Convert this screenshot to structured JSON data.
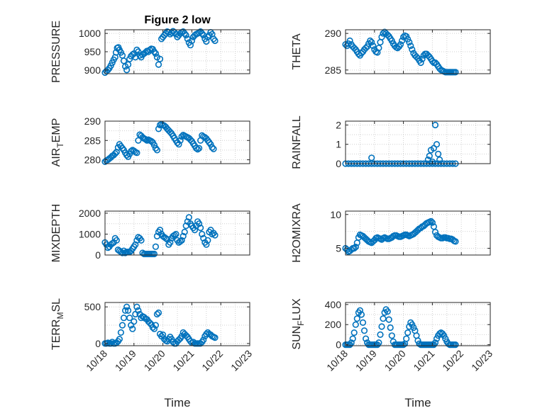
{
  "colors": {
    "marker": "#0072BD",
    "axis": "#262626",
    "grid": "#d0d0d0"
  },
  "chart_data": [
    {
      "type": "scatter",
      "title": "Figure 2 low",
      "ylabel": "PRESSURE",
      "ylabel_sub": "",
      "xlim": [
        0,
        5
      ],
      "ylim": [
        890,
        1010
      ],
      "yticks": [
        900,
        950,
        1000
      ],
      "show_xticks": false,
      "x": [
        0,
        0.05,
        0.1,
        0.15,
        0.2,
        0.25,
        0.3,
        0.35,
        0.38,
        0.42,
        0.46,
        0.5,
        0.55,
        0.6,
        0.65,
        0.7,
        0.75,
        0.8,
        0.85,
        0.9,
        0.95,
        1.0,
        1.05,
        1.1,
        1.15,
        1.2,
        1.25,
        1.3,
        1.35,
        1.4,
        1.45,
        1.5,
        1.55,
        1.6,
        1.65,
        1.7,
        1.75,
        1.8,
        1.85,
        1.9,
        1.95,
        2.0,
        2.05,
        2.1,
        2.15,
        2.2,
        2.25,
        2.3,
        2.35,
        2.4,
        2.45,
        2.5,
        2.55,
        2.6,
        2.65,
        2.7,
        2.75,
        2.8,
        2.85,
        2.9,
        2.95,
        3.0,
        3.05,
        3.1,
        3.15,
        3.2,
        3.25,
        3.3,
        3.35,
        3.4,
        3.45,
        3.5,
        3.55,
        3.6,
        3.65,
        3.7,
        3.75,
        3.8
      ],
      "y": [
        893,
        897,
        900,
        905,
        912,
        920,
        928,
        935,
        948,
        960,
        962,
        955,
        948,
        940,
        925,
        910,
        900,
        915,
        930,
        938,
        942,
        945,
        935,
        955,
        950,
        940,
        935,
        942,
        945,
        948,
        952,
        950,
        955,
        958,
        957,
        950,
        945,
        935,
        915,
        930,
        985,
        990,
        995,
        1000,
        1005,
        1003,
        998,
        1002,
        1006,
        1003,
        998,
        990,
        995,
        1000,
        1003,
        1005,
        1000,
        995,
        985,
        975,
        968,
        980,
        990,
        995,
        998,
        1000,
        1002,
        1005,
        1000,
        995,
        985,
        978,
        990,
        995,
        1003,
        998,
        985,
        980
      ]
    },
    {
      "type": "scatter",
      "title": "",
      "ylabel": "THETA",
      "ylabel_sub": "",
      "xlim": [
        0,
        5
      ],
      "ylim": [
        284.5,
        290.5
      ],
      "yticks": [
        285,
        290
      ],
      "show_xticks": false,
      "x": [
        0,
        0.05,
        0.1,
        0.15,
        0.2,
        0.25,
        0.3,
        0.35,
        0.4,
        0.45,
        0.5,
        0.55,
        0.6,
        0.65,
        0.7,
        0.75,
        0.8,
        0.85,
        0.9,
        0.95,
        1.0,
        1.05,
        1.1,
        1.15,
        1.2,
        1.25,
        1.3,
        1.35,
        1.4,
        1.45,
        1.5,
        1.55,
        1.6,
        1.65,
        1.7,
        1.75,
        1.8,
        1.85,
        1.9,
        1.95,
        2.0,
        2.05,
        2.1,
        2.15,
        2.2,
        2.25,
        2.3,
        2.35,
        2.4,
        2.45,
        2.5,
        2.55,
        2.6,
        2.65,
        2.7,
        2.75,
        2.8,
        2.85,
        2.9,
        2.95,
        3.0,
        3.05,
        3.1,
        3.15,
        3.2,
        3.25,
        3.3,
        3.35,
        3.4,
        3.45,
        3.5,
        3.55,
        3.6,
        3.65,
        3.7,
        3.75,
        3.8
      ],
      "y": [
        288.5,
        288.3,
        288.6,
        289,
        288.5,
        288.2,
        288,
        287.8,
        287.5,
        287.2,
        287.0,
        287.3,
        287.5,
        287.8,
        288,
        288.2,
        288.6,
        289,
        288.8,
        288.3,
        287.8,
        287.5,
        287.4,
        288,
        288.8,
        289.5,
        290,
        290.2,
        290,
        289.8,
        289.6,
        289.3,
        289,
        288.6,
        288.3,
        288.1,
        288,
        288.2,
        288.5,
        289,
        289.5,
        289.7,
        289.6,
        289.2,
        288.8,
        288.3,
        287.8,
        287.3,
        287,
        286.8,
        286.6,
        286.3,
        286,
        286.5,
        287,
        287.2,
        287.2,
        287,
        286.8,
        286.5,
        286.2,
        286,
        286,
        285.8,
        285.5,
        285.2,
        285,
        284.9,
        284.8,
        284.7,
        284.7,
        284.7,
        284.7,
        284.7,
        284.7,
        284.7,
        284.7
      ]
    },
    {
      "type": "scatter",
      "title": "",
      "ylabel": "AIR",
      "ylabel_sub": "T",
      "ylabel_post": "EMP",
      "xlim": [
        0,
        5
      ],
      "ylim": [
        279,
        290
      ],
      "yticks": [
        280,
        285,
        290
      ],
      "show_xticks": false,
      "x": [
        0,
        0.05,
        0.1,
        0.15,
        0.2,
        0.25,
        0.3,
        0.35,
        0.4,
        0.45,
        0.5,
        0.55,
        0.6,
        0.65,
        0.7,
        0.75,
        0.8,
        0.85,
        0.9,
        0.95,
        1.0,
        1.05,
        1.1,
        1.15,
        1.2,
        1.25,
        1.3,
        1.35,
        1.4,
        1.45,
        1.5,
        1.55,
        1.6,
        1.65,
        1.7,
        1.75,
        1.8,
        1.85,
        1.9,
        1.95,
        2.0,
        2.05,
        2.1,
        2.15,
        2.2,
        2.25,
        2.3,
        2.35,
        2.4,
        2.45,
        2.5,
        2.55,
        2.6,
        2.65,
        2.7,
        2.75,
        2.8,
        2.85,
        2.9,
        2.95,
        3.0,
        3.05,
        3.1,
        3.15,
        3.2,
        3.25,
        3.3,
        3.35,
        3.4,
        3.45,
        3.5,
        3.55,
        3.6,
        3.65,
        3.7,
        3.75
      ],
      "y": [
        279.5,
        279.8,
        280,
        280.3,
        280.6,
        281,
        281.2,
        281.6,
        282,
        283.2,
        284,
        283.5,
        283,
        282.5,
        281.8,
        281.2,
        280.8,
        281.5,
        282.2,
        282.5,
        282.3,
        282,
        281.8,
        285,
        286.5,
        286.2,
        285.8,
        285.5,
        285.3,
        285,
        285.2,
        285,
        284.8,
        284.5,
        283.8,
        283,
        282.5,
        288,
        289,
        289.2,
        289,
        288.8,
        288.5,
        288,
        287.6,
        287.2,
        286.8,
        286.2,
        285.6,
        285,
        284.4,
        284,
        285,
        286,
        286.4,
        286.2,
        286,
        285.8,
        285.6,
        285.2,
        284.8,
        284.2,
        283.6,
        283,
        282.7,
        283,
        285,
        286.3,
        286,
        285.8,
        285.5,
        285,
        284.5,
        284,
        283.2,
        282.8
      ]
    },
    {
      "type": "scatter",
      "title": "",
      "ylabel": "RAINFALL",
      "ylabel_sub": "",
      "xlim": [
        0,
        5
      ],
      "ylim": [
        0,
        2.2
      ],
      "yticks": [
        0,
        1,
        2
      ],
      "show_xticks": false,
      "x": [
        0,
        0.1,
        0.2,
        0.3,
        0.4,
        0.5,
        0.6,
        0.7,
        0.8,
        0.9,
        1.0,
        1.1,
        1.2,
        1.3,
        1.4,
        1.5,
        1.6,
        1.7,
        1.8,
        1.9,
        2.0,
        2.1,
        2.2,
        2.3,
        2.4,
        2.5,
        2.6,
        2.7,
        2.8,
        2.9,
        3.0,
        3.1,
        3.2,
        3.3,
        3.4,
        3.5,
        3.6,
        3.7,
        3.8,
        0.9,
        2.85,
        2.9,
        2.95,
        3.0,
        3.05,
        3.1,
        3.15,
        3.2,
        3.25
      ],
      "y": [
        0,
        0,
        0,
        0,
        0,
        0,
        0,
        0,
        0,
        0,
        0,
        0,
        0,
        0,
        0,
        0,
        0,
        0,
        0,
        0,
        0,
        0,
        0,
        0,
        0,
        0,
        0,
        0,
        0,
        0,
        0,
        0,
        0,
        0,
        0,
        0,
        0,
        0,
        0,
        0.3,
        0.2,
        0.4,
        0.7,
        0.1,
        0.8,
        2.0,
        1.0,
        0.5,
        0.2
      ]
    },
    {
      "type": "scatter",
      "title": "",
      "ylabel": "MIXDEPTH",
      "ylabel_sub": "",
      "xlim": [
        0,
        5
      ],
      "ylim": [
        0,
        2100
      ],
      "yticks": [
        0,
        1000,
        2000
      ],
      "show_xticks": false,
      "x": [
        0,
        0.05,
        0.1,
        0.15,
        0.2,
        0.25,
        0.3,
        0.35,
        0.4,
        0.45,
        0.5,
        0.55,
        0.6,
        0.65,
        0.7,
        0.75,
        0.8,
        0.85,
        0.9,
        0.95,
        1.0,
        1.05,
        1.1,
        1.15,
        1.2,
        1.25,
        1.3,
        1.35,
        1.4,
        1.45,
        1.5,
        1.55,
        1.6,
        1.65,
        1.7,
        1.75,
        1.8,
        1.85,
        1.9,
        1.95,
        2.0,
        2.05,
        2.1,
        2.15,
        2.2,
        2.25,
        2.3,
        2.35,
        2.4,
        2.45,
        2.5,
        2.55,
        2.6,
        2.65,
        2.7,
        2.75,
        2.8,
        2.85,
        2.9,
        2.95,
        3.0,
        3.05,
        3.1,
        3.15,
        3.2,
        3.25,
        3.3,
        3.35,
        3.4,
        3.45,
        3.5,
        3.55,
        3.6,
        3.65,
        3.7,
        3.75,
        3.8
      ],
      "y": [
        600,
        500,
        350,
        400,
        500,
        550,
        600,
        800,
        700,
        250,
        200,
        150,
        100,
        200,
        100,
        150,
        150,
        150,
        200,
        300,
        400,
        500,
        700,
        850,
        800,
        700,
        100,
        50,
        50,
        50,
        50,
        50,
        50,
        50,
        50,
        400,
        900,
        1100,
        1200,
        1000,
        900,
        850,
        800,
        750,
        500,
        600,
        800,
        900,
        950,
        1000,
        700,
        600,
        650,
        700,
        900,
        1100,
        1400,
        1600,
        1800,
        1500,
        1400,
        1300,
        1200,
        1400,
        1600,
        1500,
        1300,
        1000,
        800,
        600,
        500,
        700,
        1100,
        1200,
        1000,
        1050,
        950
      ]
    },
    {
      "type": "scatter",
      "title": "",
      "ylabel": "H2OMIXRA",
      "ylabel_sub": "",
      "xlim": [
        0,
        5
      ],
      "ylim": [
        4,
        10.5
      ],
      "yticks": [
        5,
        10
      ],
      "show_xticks": false,
      "x": [
        0,
        0.05,
        0.1,
        0.15,
        0.2,
        0.25,
        0.3,
        0.35,
        0.4,
        0.45,
        0.5,
        0.55,
        0.6,
        0.65,
        0.7,
        0.75,
        0.8,
        0.85,
        0.9,
        0.95,
        1.0,
        1.05,
        1.1,
        1.15,
        1.2,
        1.25,
        1.3,
        1.35,
        1.4,
        1.45,
        1.5,
        1.55,
        1.6,
        1.65,
        1.7,
        1.75,
        1.8,
        1.85,
        1.9,
        1.95,
        2.0,
        2.05,
        2.1,
        2.15,
        2.2,
        2.25,
        2.3,
        2.35,
        2.4,
        2.45,
        2.5,
        2.55,
        2.6,
        2.65,
        2.7,
        2.75,
        2.8,
        2.85,
        2.9,
        2.95,
        3.0,
        3.05,
        3.1,
        3.15,
        3.2,
        3.25,
        3.3,
        3.35,
        3.4,
        3.45,
        3.5,
        3.55,
        3.6,
        3.65,
        3.7,
        3.75,
        3.8
      ],
      "y": [
        5.0,
        4.8,
        4.5,
        4.6,
        4.8,
        5.0,
        5.0,
        5.2,
        5.8,
        6.6,
        7.0,
        6.9,
        6.8,
        6.6,
        6.4,
        6.2,
        6.0,
        5.9,
        5.8,
        6.0,
        6.2,
        6.5,
        6.6,
        6.5,
        6.4,
        6.3,
        6.5,
        6.6,
        6.5,
        6.4,
        6.4,
        6.5,
        6.6,
        6.8,
        6.9,
        6.9,
        6.8,
        6.7,
        6.7,
        6.8,
        6.9,
        7.0,
        7.0,
        6.9,
        6.8,
        6.9,
        7.0,
        7.1,
        7.3,
        7.5,
        7.7,
        7.9,
        8.0,
        8.2,
        8.3,
        8.5,
        8.7,
        8.8,
        8.9,
        9.0,
        8.8,
        8.2,
        7.4,
        6.9,
        6.7,
        6.6,
        6.5,
        6.5,
        6.6,
        6.6,
        6.5,
        6.5,
        6.4,
        6.4,
        6.3,
        6.1,
        6.0
      ]
    },
    {
      "type": "scatter",
      "title": "",
      "ylabel": "TERR",
      "ylabel_sub": "M",
      "ylabel_post": "SL",
      "xlim": [
        0,
        5
      ],
      "ylim": [
        -30,
        560
      ],
      "yticks": [
        0,
        500
      ],
      "show_xticks": true,
      "xticks": [
        0,
        1,
        2,
        3,
        4,
        5
      ],
      "xticklabels": [
        "10/18",
        "10/19",
        "10/20",
        "10/21",
        "10/22",
        "10/23"
      ],
      "xlabel": "Time",
      "x": [
        0,
        0.05,
        0.1,
        0.15,
        0.2,
        0.25,
        0.3,
        0.35,
        0.4,
        0.45,
        0.5,
        0.55,
        0.6,
        0.65,
        0.7,
        0.75,
        0.8,
        0.85,
        0.9,
        0.95,
        1.0,
        1.05,
        1.1,
        1.15,
        1.2,
        1.25,
        1.3,
        1.35,
        1.4,
        1.45,
        1.5,
        1.55,
        1.6,
        1.65,
        1.7,
        1.75,
        1.8,
        1.85,
        1.9,
        1.95,
        2.0,
        2.05,
        2.1,
        2.15,
        2.2,
        2.25,
        2.3,
        2.35,
        2.4,
        2.45,
        2.5,
        2.55,
        2.6,
        2.65,
        2.7,
        2.75,
        2.8,
        2.85,
        2.9,
        2.95,
        3.0,
        3.05,
        3.1,
        3.15,
        3.2,
        3.25,
        3.3,
        3.35,
        3.4,
        3.45,
        3.5,
        3.55,
        3.6,
        3.65,
        3.7,
        3.75,
        3.8
      ],
      "y": [
        0,
        0,
        10,
        0,
        0,
        20,
        0,
        0,
        10,
        30,
        60,
        150,
        250,
        350,
        450,
        500,
        450,
        350,
        250,
        200,
        300,
        400,
        500,
        450,
        400,
        350,
        370,
        360,
        340,
        330,
        300,
        280,
        260,
        220,
        200,
        250,
        400,
        420,
        130,
        100,
        120,
        60,
        40,
        30,
        60,
        90,
        60,
        20,
        0,
        0,
        30,
        50,
        70,
        100,
        150,
        130,
        110,
        90,
        60,
        30,
        10,
        20,
        0,
        0,
        0,
        0,
        0,
        20,
        50,
        100,
        130,
        150,
        130,
        120,
        100,
        90,
        80
      ]
    },
    {
      "type": "scatter",
      "title": "",
      "ylabel": "SUN",
      "ylabel_sub": "F",
      "ylabel_post": "LUX",
      "xlim": [
        0,
        5
      ],
      "ylim": [
        -10,
        420
      ],
      "yticks": [
        0,
        200,
        400
      ],
      "show_xticks": true,
      "xticks": [
        0,
        1,
        2,
        3,
        4,
        5
      ],
      "xticklabels": [
        "10/18",
        "10/19",
        "10/20",
        "10/21",
        "10/22",
        "10/23"
      ],
      "xlabel": "Time",
      "x": [
        0,
        0.05,
        0.1,
        0.15,
        0.2,
        0.25,
        0.3,
        0.35,
        0.4,
        0.45,
        0.5,
        0.55,
        0.6,
        0.65,
        0.7,
        0.75,
        0.8,
        0.85,
        0.9,
        0.95,
        1.0,
        1.05,
        1.1,
        1.15,
        1.2,
        1.25,
        1.3,
        1.35,
        1.4,
        1.45,
        1.5,
        1.55,
        1.6,
        1.65,
        1.7,
        1.75,
        1.8,
        1.85,
        1.9,
        1.95,
        2.0,
        2.05,
        2.1,
        2.15,
        2.2,
        2.25,
        2.3,
        2.35,
        2.4,
        2.45,
        2.5,
        2.55,
        2.6,
        2.65,
        2.7,
        2.75,
        2.8,
        2.85,
        2.9,
        2.95,
        3.0,
        3.05,
        3.1,
        3.15,
        3.2,
        3.25,
        3.3,
        3.35,
        3.4,
        3.45,
        3.5,
        3.55,
        3.6,
        3.65,
        3.7,
        3.75,
        3.8
      ],
      "y": [
        0,
        0,
        0,
        0,
        20,
        60,
        120,
        200,
        260,
        320,
        340,
        300,
        220,
        140,
        60,
        20,
        0,
        0,
        0,
        0,
        0,
        0,
        0,
        20,
        100,
        180,
        260,
        320,
        350,
        330,
        250,
        170,
        90,
        30,
        0,
        0,
        0,
        0,
        0,
        0,
        0,
        10,
        60,
        120,
        180,
        220,
        200,
        170,
        140,
        90,
        40,
        10,
        0,
        0,
        0,
        0,
        0,
        0,
        0,
        0,
        0,
        0,
        20,
        60,
        90,
        110,
        120,
        110,
        90,
        60,
        30,
        10,
        0,
        0,
        0,
        0,
        0
      ]
    }
  ]
}
